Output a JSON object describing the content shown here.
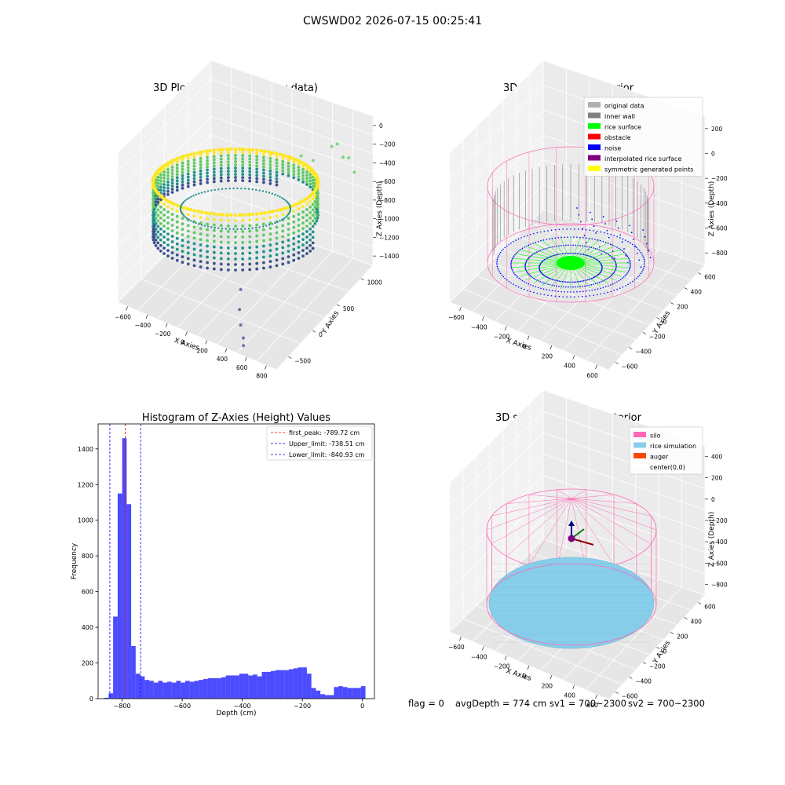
{
  "figure": {
    "suptitle": "CWSWD02 2026-07-15 00:25:41",
    "footer": {
      "flag": "flag = 0",
      "avg_depth": "avgDepth = 774 cm",
      "sv1": "sv1 = 700~2300",
      "sv2": "sv2 = 700~2300"
    }
  },
  "colors": {
    "viridis": [
      "#440154",
      "#3b528b",
      "#21918c",
      "#5ec962",
      "#fde725"
    ],
    "histogram_bar": "#0000ff",
    "peak_line": "#ff0000",
    "limit_line": "#0000ff",
    "silo": "#ff69b4",
    "rice": "#87ceeb",
    "auger": "#ff4500",
    "inner_wall": "#808080",
    "rice_surface": "#00ff00",
    "noise": "#0000ff"
  },
  "chart_data": [
    {
      "id": "raw",
      "type": "scatter3d",
      "title": "3D Plot of Silo Interior(row data)",
      "xlabel": "X Axies",
      "ylabel": "Y Axies",
      "zlabel": "Z Axies (Depth)",
      "xticks": [
        "−600",
        "−400",
        "−200",
        "0",
        "200",
        "400",
        "600",
        "800"
      ],
      "yticks": [
        "−500",
        "0",
        "500",
        "1000"
      ],
      "zticks": [
        "0",
        "−200",
        "−400",
        "−600",
        "−800",
        "−1000",
        "−1200",
        "−1400"
      ],
      "xlim": [
        -700,
        900
      ],
      "ylim": [
        -700,
        1300
      ],
      "zlim": [
        -1500,
        0
      ],
      "note_points": [
        {
          "x": 620,
          "y": 1150,
          "z": -300
        },
        {
          "x": 700,
          "y": 1100,
          "z": -380
        },
        {
          "x": 780,
          "y": 1050,
          "z": -330
        },
        {
          "x": 860,
          "y": 1000,
          "z": -420
        },
        {
          "x": 540,
          "y": 1200,
          "z": -380
        },
        {
          "x": 450,
          "y": 1000,
          "z": -450
        },
        {
          "x": 380,
          "y": 900,
          "z": -380
        },
        {
          "x": 300,
          "y": -200,
          "z": -1200
        },
        {
          "x": 360,
          "y": -350,
          "z": -1300
        },
        {
          "x": 420,
          "y": -450,
          "z": -1380
        },
        {
          "x": 480,
          "y": -520,
          "z": -1450
        },
        {
          "x": 520,
          "y": -600,
          "z": -1470
        }
      ]
    },
    {
      "id": "classify",
      "type": "scatter3d",
      "title": "3D classify of Silo Interior",
      "xlabel": "X Axies",
      "ylabel": "Y Axies",
      "zlabel": "Z Axies (Depth)",
      "xticks": [
        "−600",
        "−400",
        "−200",
        "0",
        "200",
        "400",
        "600"
      ],
      "yticks": [
        "−600",
        "−400",
        "−200",
        "0",
        "200",
        "400",
        "600"
      ],
      "zticks": [
        "200",
        "0",
        "−200",
        "−400",
        "−600",
        "−800"
      ],
      "xlim": [
        -700,
        700
      ],
      "ylim": [
        -700,
        700
      ],
      "zlim": [
        -900,
        300
      ],
      "legend": {
        "position": "upper right",
        "entries": [
          {
            "label": "original data",
            "color": "#b0b0b0"
          },
          {
            "label": "inner wall",
            "color": "#808080"
          },
          {
            "label": "rice surface",
            "color": "#00ff00"
          },
          {
            "label": "obstacle",
            "color": "#ff0000"
          },
          {
            "label": "noise",
            "color": "#0000ff"
          },
          {
            "label": "interpolated rice surface",
            "color": "#800080"
          },
          {
            "label": "symmetric generated points",
            "color": "#ffff00"
          }
        ]
      }
    },
    {
      "id": "hist",
      "type": "bar",
      "title": "Histogram of Z-Axies (Height) Values",
      "xlabel": "Depth (cm)",
      "ylabel": "Frequency",
      "xlim": [
        -880,
        40
      ],
      "ylim": [
        0,
        1540
      ],
      "xticks": [
        {
          "value": -800,
          "label": "−800"
        },
        {
          "value": -600,
          "label": "−600"
        },
        {
          "value": -400,
          "label": "−400"
        },
        {
          "value": -200,
          "label": "−200"
        },
        {
          "value": 0,
          "label": "0"
        }
      ],
      "yticks": [
        {
          "value": 0,
          "label": "0"
        },
        {
          "value": 200,
          "label": "200"
        },
        {
          "value": 400,
          "label": "400"
        },
        {
          "value": 600,
          "label": "600"
        },
        {
          "value": 800,
          "label": "800"
        },
        {
          "value": 1000,
          "label": "1000"
        },
        {
          "value": 1200,
          "label": "1200"
        },
        {
          "value": 1400,
          "label": "1400"
        }
      ],
      "bin_width": 15,
      "bins_start": [
        -860,
        -845,
        -830,
        -815,
        -800,
        -785,
        -770,
        -755,
        -740,
        -725,
        -710,
        -695,
        -680,
        -665,
        -650,
        -635,
        -620,
        -605,
        -590,
        -575,
        -560,
        -545,
        -530,
        -515,
        -500,
        -485,
        -470,
        -455,
        -440,
        -425,
        -410,
        -395,
        -380,
        -365,
        -350,
        -335,
        -320,
        -305,
        -290,
        -275,
        -260,
        -245,
        -230,
        -215,
        -200,
        -185,
        -170,
        -155,
        -140,
        -125,
        -110,
        -95,
        -80,
        -65,
        -50,
        -35,
        -20,
        -5
      ],
      "values": [
        5,
        30,
        460,
        1150,
        1460,
        1090,
        295,
        140,
        125,
        105,
        100,
        90,
        100,
        90,
        95,
        90,
        100,
        90,
        100,
        95,
        100,
        105,
        110,
        115,
        115,
        115,
        120,
        130,
        130,
        130,
        140,
        140,
        130,
        135,
        125,
        150,
        150,
        155,
        160,
        160,
        160,
        165,
        170,
        175,
        175,
        140,
        60,
        45,
        25,
        20,
        20,
        65,
        70,
        65,
        60,
        60,
        60,
        70
      ],
      "vlines": [
        {
          "value": -789.72,
          "label": "first_peak: -789.72 cm",
          "color": "#ff0000"
        },
        {
          "value": -738.51,
          "label": "Upper_limit: -738.51 cm",
          "color": "#0000ff"
        },
        {
          "value": -840.93,
          "label": "Lower_limit: -840.93 cm",
          "color": "#0000ff"
        }
      ],
      "legend_position": "upper right"
    },
    {
      "id": "sim",
      "type": "surface3d",
      "title": "3D simulation of Silo Interior",
      "xlabel": "X Axies",
      "ylabel": "Y Axies",
      "zlabel": "Z Axies (Depth)",
      "xticks": [
        "−600",
        "−400",
        "−200",
        "0",
        "200",
        "400",
        "600"
      ],
      "yticks": [
        "−600",
        "−400",
        "−200",
        "0",
        "200",
        "400",
        "600"
      ],
      "zticks": [
        "400",
        "200",
        "0",
        "−200",
        "−400",
        "−600",
        "−800"
      ],
      "xlim": [
        -700,
        700
      ],
      "ylim": [
        -700,
        700
      ],
      "zlim": [
        -900,
        500
      ],
      "legend": {
        "position": "upper right",
        "entries": [
          {
            "label": "silo",
            "color": "#ff69b4"
          },
          {
            "label": "rice simulation",
            "color": "#87ceeb"
          },
          {
            "label": "auger",
            "color": "#ff4500"
          },
          {
            "label": "center(0,0)",
            "color": "#ffffff"
          }
        ]
      }
    }
  ]
}
